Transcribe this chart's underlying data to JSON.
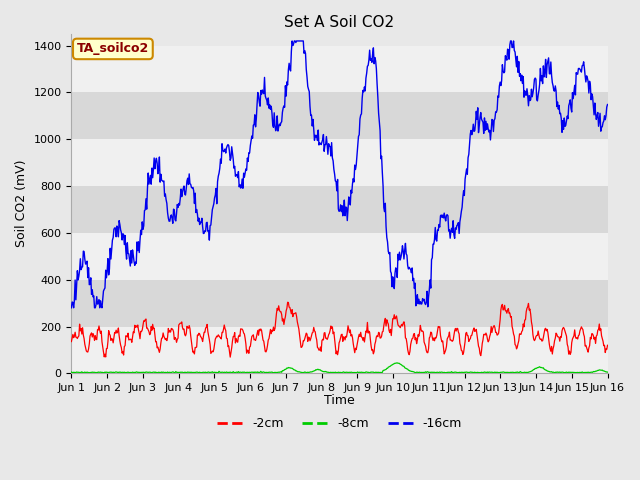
{
  "title": "Set A Soil CO2",
  "ylabel": "Soil CO2 (mV)",
  "xlabel": "Time",
  "ylim": [
    0,
    1450
  ],
  "xlim": [
    0,
    15
  ],
  "x_tick_labels": [
    "Jun 1",
    "Jun 2",
    "Jun 3",
    "Jun 4",
    "Jun 5",
    "Jun 6",
    "Jun 7",
    "Jun 8",
    "Jun 9",
    "Jun 10",
    "Jun 11",
    "Jun 12",
    "Jun 13",
    "Jun 14",
    "Jun 15",
    "Jun 16"
  ],
  "legend_label": "TA_soilco2",
  "legend_box_facecolor": "#ffffcc",
  "legend_box_edgecolor": "#cc8800",
  "legend_text_color": "#8B0000",
  "line_colors": {
    "red": "#ff0000",
    "green": "#00cc00",
    "blue": "#0000ee"
  },
  "bg_color": "#e8e8e8",
  "band_color": "#d8d8d8",
  "white_band_color": "#f0f0f0",
  "title_fontsize": 11,
  "axis_label_fontsize": 9,
  "tick_fontsize": 8
}
